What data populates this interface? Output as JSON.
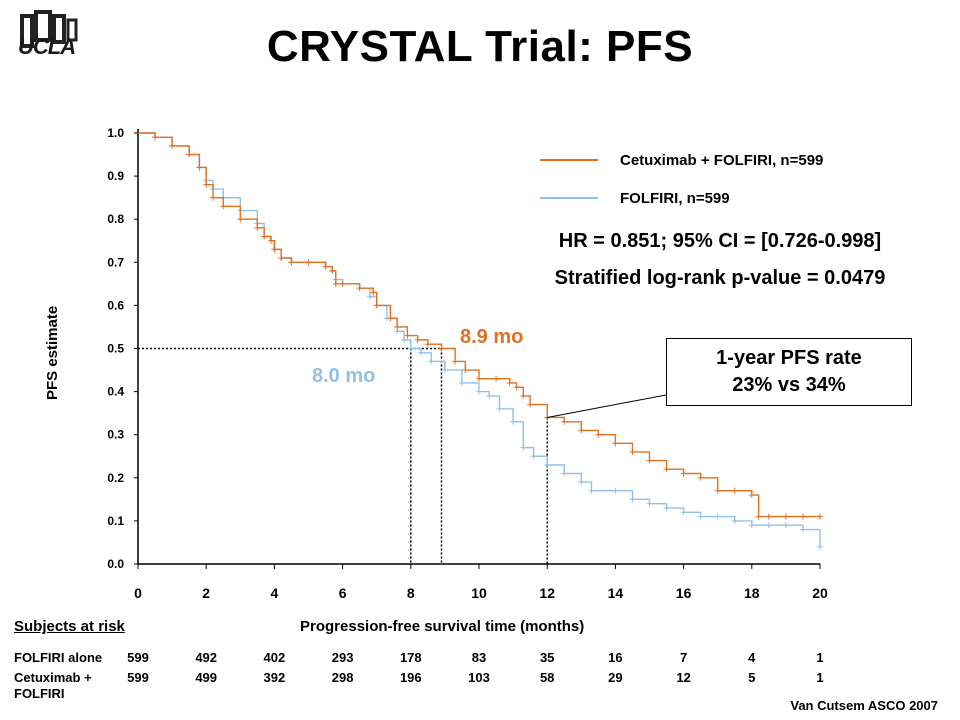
{
  "slide": {
    "title": "CRYSTAL Trial: PFS",
    "logo_text": "UCLA",
    "citation": "Van Cutsem ASCO 2007"
  },
  "stats": {
    "hr": "HR = 0.851; 95% CI = [0.726-0.998]",
    "logrank": "Stratified log-rank p-value = 0.0479"
  },
  "callout": {
    "line1": "1-year PFS rate",
    "line2": "23% vs 34%"
  },
  "medians": {
    "cetuximab": "8.9 mo",
    "folfiri": "8.0 mo"
  },
  "risk_table": {
    "header": "Subjects at risk",
    "rows": [
      {
        "label": "FOLFIRI alone",
        "values": [
          "599",
          "492",
          "402",
          "293",
          "178",
          "83",
          "35",
          "16",
          "7",
          "4",
          "1"
        ]
      },
      {
        "label": "Cetuximab + FOLFIRI",
        "values": [
          "599",
          "499",
          "392",
          "298",
          "196",
          "103",
          "58",
          "29",
          "12",
          "5",
          "1"
        ]
      }
    ]
  },
  "chart_data": {
    "type": "line",
    "xlabel": "Progression-free survival time (months)",
    "ylabel": "PFS estimate",
    "xlim": [
      0,
      20
    ],
    "ylim": [
      0,
      1
    ],
    "x_ticks": [
      "0",
      "2",
      "4",
      "6",
      "8",
      "10",
      "12",
      "14",
      "16",
      "18",
      "20"
    ],
    "y_ticks": [
      "0.0",
      "0.1",
      "0.2",
      "0.3",
      "0.4",
      "0.5",
      "0.6",
      "0.7",
      "0.8",
      "0.9",
      "1.0"
    ],
    "legend_position": "top-right",
    "median_line_y": 0.5,
    "reference_x": [
      8.0,
      8.9,
      12.0
    ],
    "series": [
      {
        "name": "Cetuximab + FOLFIRI, n=599",
        "color": "#e07020",
        "x": [
          0,
          0.5,
          1.0,
          1.5,
          1.8,
          2.0,
          2.2,
          2.5,
          3.0,
          3.5,
          3.7,
          3.9,
          4.0,
          4.2,
          4.5,
          5.0,
          5.5,
          5.7,
          5.8,
          6.0,
          6.5,
          6.9,
          7.0,
          7.4,
          7.6,
          7.9,
          8.2,
          8.5,
          8.9,
          9.3,
          9.6,
          10.0,
          10.5,
          10.9,
          11.1,
          11.3,
          11.5,
          12.0,
          12.5,
          13.0,
          13.5,
          14.0,
          14.5,
          15.0,
          15.5,
          16.0,
          16.5,
          17.0,
          17.5,
          18.0,
          18.2,
          18.5,
          19.0,
          19.5,
          20.0
        ],
        "y": [
          1.0,
          0.99,
          0.97,
          0.95,
          0.92,
          0.88,
          0.85,
          0.83,
          0.8,
          0.78,
          0.76,
          0.75,
          0.73,
          0.71,
          0.7,
          0.7,
          0.69,
          0.68,
          0.65,
          0.65,
          0.64,
          0.63,
          0.6,
          0.57,
          0.55,
          0.53,
          0.52,
          0.51,
          0.5,
          0.47,
          0.45,
          0.43,
          0.43,
          0.42,
          0.41,
          0.39,
          0.37,
          0.34,
          0.33,
          0.31,
          0.3,
          0.28,
          0.26,
          0.24,
          0.22,
          0.21,
          0.2,
          0.17,
          0.17,
          0.16,
          0.11,
          0.11,
          0.11,
          0.11,
          0.11
        ]
      },
      {
        "name": "FOLFIRI, n=599",
        "color": "#90c0e8",
        "x": [
          0,
          0.5,
          1.0,
          1.5,
          1.8,
          2.0,
          2.2,
          2.5,
          3.0,
          3.5,
          3.7,
          3.9,
          4.0,
          4.2,
          4.5,
          5.0,
          5.5,
          5.7,
          5.8,
          6.0,
          6.5,
          6.8,
          7.0,
          7.3,
          7.6,
          7.8,
          8.0,
          8.3,
          8.6,
          9.0,
          9.5,
          10.0,
          10.3,
          10.6,
          11.0,
          11.3,
          11.6,
          12.0,
          12.5,
          13.0,
          13.3,
          14.0,
          14.5,
          15.0,
          15.5,
          16.0,
          16.5,
          17.0,
          17.5,
          18.0,
          18.5,
          19.0,
          19.5,
          20.0
        ],
        "y": [
          1.0,
          0.99,
          0.97,
          0.95,
          0.92,
          0.89,
          0.87,
          0.85,
          0.82,
          0.79,
          0.76,
          0.75,
          0.73,
          0.71,
          0.7,
          0.7,
          0.69,
          0.68,
          0.66,
          0.65,
          0.64,
          0.62,
          0.6,
          0.57,
          0.54,
          0.52,
          0.5,
          0.49,
          0.47,
          0.45,
          0.42,
          0.4,
          0.39,
          0.36,
          0.33,
          0.27,
          0.25,
          0.23,
          0.21,
          0.19,
          0.17,
          0.17,
          0.15,
          0.14,
          0.13,
          0.12,
          0.11,
          0.11,
          0.1,
          0.09,
          0.09,
          0.09,
          0.08,
          0.04
        ]
      }
    ]
  }
}
